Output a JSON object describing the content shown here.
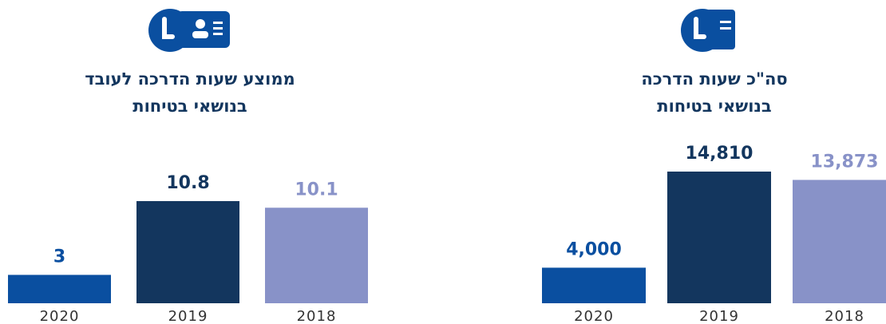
{
  "chart_data": [
    {
      "type": "bar",
      "title_lines": [
        "סה\"כ שעות הדרכה",
        "בנושאי בטיחות"
      ],
      "categories": [
        "2020",
        "2019",
        "2018"
      ],
      "values": [
        4000,
        14810,
        13873
      ],
      "value_labels": [
        "4,000",
        "14,810",
        "13,873"
      ],
      "colors": [
        "#0a4fa0",
        "#13365e",
        "#8892c8"
      ]
    },
    {
      "type": "bar",
      "title_lines": [
        "ממוצע שעות הדרכה לעובד",
        "בנושאי בטיחות"
      ],
      "categories": [
        "2020",
        "2019",
        "2018"
      ],
      "values": [
        3,
        10.8,
        10.1
      ],
      "colors": [
        "#0a4fa0",
        "#13365e",
        "#8892c8"
      ]
    }
  ]
}
